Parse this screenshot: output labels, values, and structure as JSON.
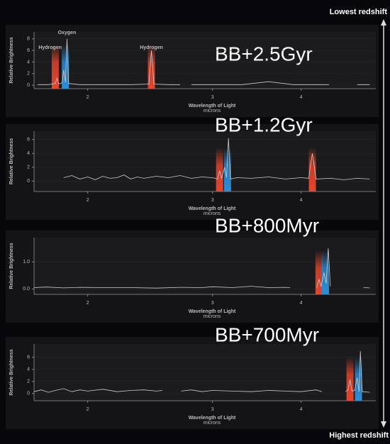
{
  "labels": {
    "top": "Lowest redshift",
    "bottom": "Highest redshift"
  },
  "chart_data": [
    {
      "type": "line",
      "title": "BB+2.5Gyr",
      "xlabel": "Wavelength of Light",
      "xunit": "microns",
      "ylabel": "Relative Brightness",
      "xscale": "log",
      "xlim": [
        1.68,
        5.1
      ],
      "xticks": [
        2,
        3,
        4
      ],
      "ylim": [
        -0.6,
        9.2
      ],
      "yticks": [
        0,
        2,
        4,
        6,
        8
      ],
      "grid": true,
      "series": [
        {
          "color": "#cccccc",
          "x": [
            1.7,
            1.76,
            1.8,
            1.81,
            1.82,
            1.84,
            1.85,
            1.86,
            1.87,
            1.88,
            1.95,
            2.1,
            2.3,
            2.44,
            2.46,
            2.48,
            2.6,
            2.7,
            2.72,
            2.8,
            3.0,
            3.3,
            3.6,
            3.9,
            4.2,
            4.38,
            4.5,
            4.8,
            5.0
          ],
          "values": [
            0.1,
            0.1,
            0.3,
            1.2,
            0.2,
            0.4,
            2.6,
            0.5,
            8.0,
            0.3,
            0.1,
            0.1,
            0.1,
            0.2,
            6.0,
            0.2,
            0.1,
            0.1,
            null,
            0.1,
            0.1,
            0.1,
            0.6,
            0.1,
            0.1,
            0.1,
            null,
            0.1,
            0.1
          ]
        }
      ],
      "bands": [
        {
          "x": 1.8,
          "color": "#e8452c"
        },
        {
          "x": 1.86,
          "color": "#2a8fd8"
        },
        {
          "x": 2.46,
          "color": "#e8452c"
        }
      ],
      "annotations": [
        {
          "text": "Hydrogen",
          "x": 1.77
        },
        {
          "text": "Oxygen",
          "x": 1.87
        },
        {
          "text": "Hydrogen",
          "x": 2.46
        }
      ]
    },
    {
      "type": "line",
      "title": "BB+1.2Gyr",
      "xlabel": "Wavelength of Light",
      "xunit": "microns",
      "ylabel": "Relative Brightness",
      "xscale": "log",
      "xlim": [
        1.68,
        5.1
      ],
      "xticks": [
        2,
        3,
        4
      ],
      "ylim": [
        -1.5,
        7.2
      ],
      "yticks": [
        0,
        2,
        4,
        6
      ],
      "grid": true,
      "series": [
        {
          "color": "#cccccc",
          "x": [
            1.85,
            1.9,
            1.95,
            2.0,
            2.05,
            2.1,
            2.15,
            2.2,
            2.25,
            2.3,
            2.35,
            2.4,
            2.5,
            2.6,
            2.7,
            2.8,
            2.9,
            3.0,
            3.05,
            3.07,
            3.09,
            3.12,
            3.14,
            3.16,
            3.18,
            3.25,
            3.4,
            3.6,
            3.8,
            4.0,
            4.1,
            4.15,
            4.2,
            4.4,
            4.6,
            4.8,
            5.0
          ],
          "values": [
            0.5,
            0.8,
            0.3,
            0.6,
            0.2,
            0.7,
            0.4,
            0.5,
            0.9,
            0.3,
            0.6,
            0.4,
            0.7,
            0.5,
            0.8,
            0.4,
            0.6,
            0.5,
            0.3,
            1.5,
            0.4,
            2.0,
            0.5,
            6.2,
            0.3,
            0.5,
            0.4,
            0.6,
            0.3,
            0.5,
            0.4,
            4.0,
            0.3,
            0.4,
            0.2,
            0.4,
            0.3
          ]
        }
      ],
      "bands": [
        {
          "x": 3.07,
          "color": "#e8452c"
        },
        {
          "x": 3.15,
          "color": "#2a8fd8"
        },
        {
          "x": 4.15,
          "color": "#e8452c"
        }
      ]
    },
    {
      "type": "line",
      "title": "BB+800Myr",
      "xlabel": "Wavelength of Light",
      "xunit": "microns",
      "ylabel": "Relative Brightness",
      "xscale": "log",
      "xlim": [
        1.68,
        5.1
      ],
      "xticks": [
        2,
        3,
        4
      ],
      "ylim": [
        -0.2,
        1.9
      ],
      "yticks": [
        {
          "value": 0,
          "label": "0.0"
        },
        {
          "value": 1,
          "label": "1.0"
        }
      ],
      "grid": true,
      "series": [
        {
          "color": "#cccccc",
          "x": [
            1.68,
            1.75,
            1.85,
            1.95,
            2.1,
            2.3,
            2.5,
            2.7,
            2.9,
            3.0,
            3.2,
            3.4,
            3.6,
            3.8,
            3.86,
            4.0,
            4.21,
            4.24,
            4.27,
            4.31,
            4.34,
            4.37,
            4.4,
            4.5,
            4.9,
            5.0
          ],
          "values": [
            0.05,
            0.07,
            0.04,
            0.06,
            0.05,
            0.05,
            0.03,
            0.06,
            0.05,
            0.08,
            0.05,
            0.1,
            0.05,
            0.06,
            0.05,
            null,
            0.05,
            0.35,
            0.1,
            0.6,
            0.2,
            1.5,
            0.1,
            null,
            0.05,
            0.04
          ]
        }
      ],
      "bands": [
        {
          "x": 4.24,
          "color": "#e8452c"
        },
        {
          "x": 4.33,
          "color": "#2a8fd8"
        }
      ]
    },
    {
      "type": "line",
      "title": "BB+700Myr",
      "xlabel": "Wavelength of Light",
      "xunit": "microns",
      "ylabel": "Relative Brightness",
      "xscale": "log",
      "xlim": [
        1.68,
        5.1
      ],
      "xticks": [
        2,
        3,
        4
      ],
      "ylim": [
        -1.2,
        8.2
      ],
      "yticks": [
        0,
        2,
        4,
        6
      ],
      "grid": true,
      "series": [
        {
          "color": "#cccccc",
          "x": [
            1.68,
            1.72,
            1.76,
            1.8,
            1.85,
            1.9,
            1.95,
            2.0,
            2.1,
            2.2,
            2.3,
            2.4,
            2.5,
            2.55,
            2.6,
            2.71,
            2.8,
            2.9,
            3.0,
            3.2,
            3.4,
            3.6,
            3.8,
            4.0,
            4.2,
            4.28,
            4.4,
            4.62,
            4.66,
            4.69,
            4.72,
            4.76,
            4.8,
            4.83,
            4.85,
            4.88,
            5.0
          ],
          "values": [
            0.3,
            0.6,
            0.2,
            0.5,
            0.8,
            0.3,
            0.6,
            0.4,
            0.7,
            0.3,
            0.5,
            0.6,
            0.4,
            0.5,
            null,
            0.4,
            0.6,
            0.3,
            0.5,
            0.4,
            0.3,
            0.5,
            0.4,
            0.3,
            0.6,
            0.3,
            null,
            0.3,
            0.6,
            2.3,
            0.4,
            0.5,
            2.6,
            0.3,
            7.0,
            0.3,
            0.2
          ]
        }
      ],
      "bands": [
        {
          "x": 4.69,
          "color": "#e8452c"
        },
        {
          "x": 4.82,
          "color": "#2a8fd8"
        }
      ]
    }
  ]
}
